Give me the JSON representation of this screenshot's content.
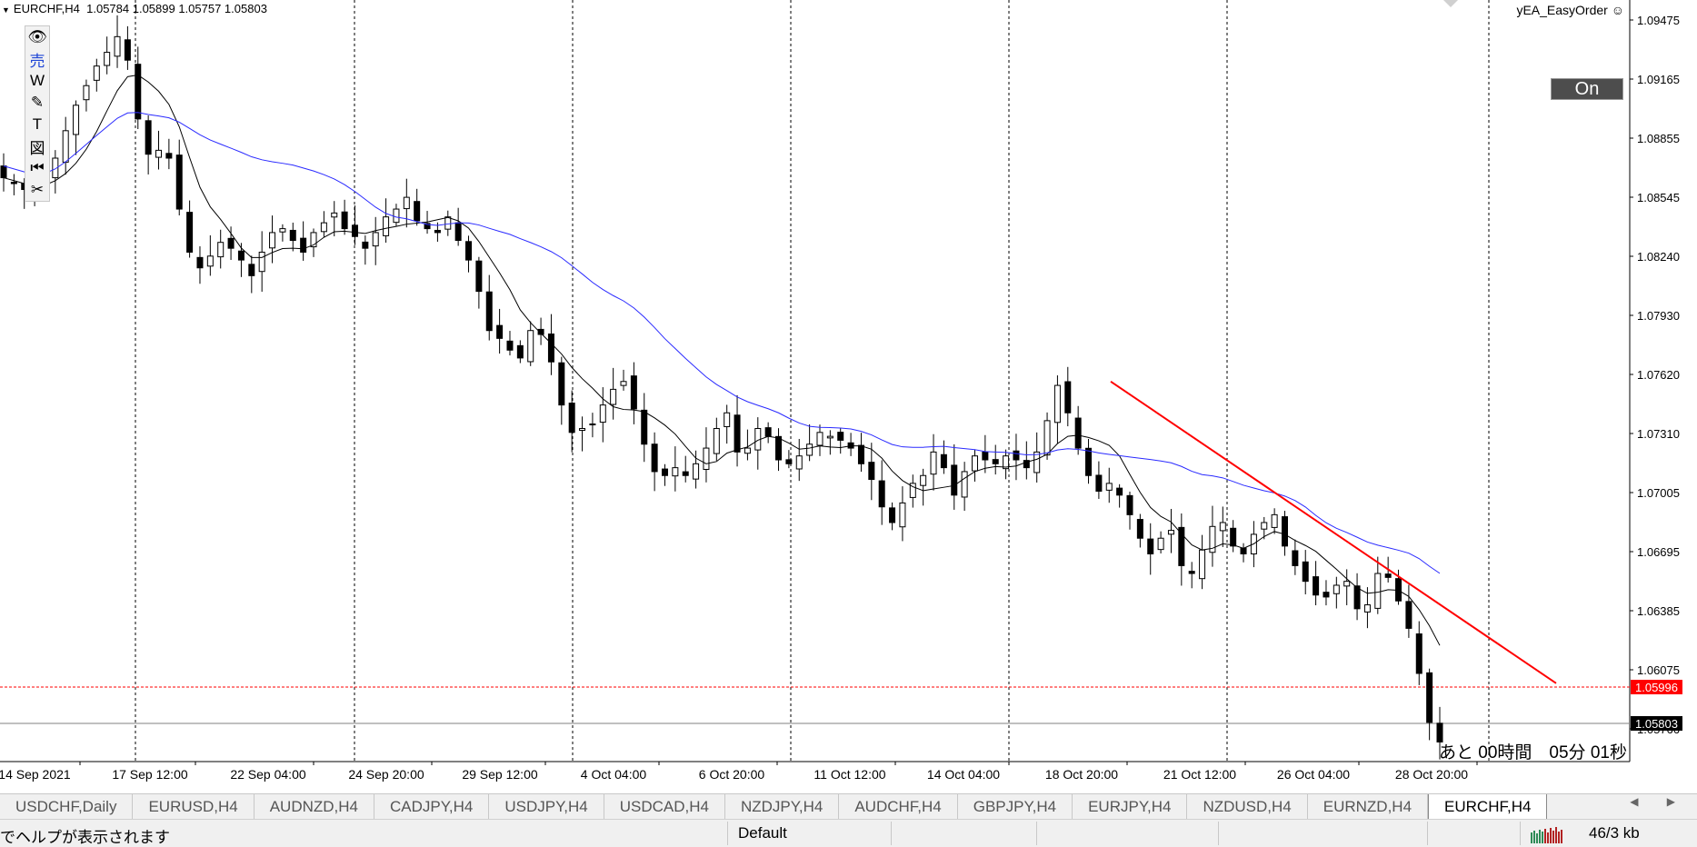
{
  "header": {
    "symbol": "EURCHF,H4",
    "ohlc": "1.05784 1.05899 1.05757 1.05803"
  },
  "toolbar": {
    "tools": [
      {
        "name": "eye-icon",
        "glyph": "👁"
      },
      {
        "name": "sell-icon",
        "glyph": "売"
      },
      {
        "name": "w-icon",
        "glyph": "W"
      },
      {
        "name": "pencil-icon",
        "glyph": "✎"
      },
      {
        "name": "text-icon",
        "glyph": "T"
      },
      {
        "name": "figure-icon",
        "glyph": "図"
      },
      {
        "name": "rewind-icon",
        "glyph": "⏮"
      },
      {
        "name": "scissors-icon",
        "glyph": "✂"
      }
    ]
  },
  "ea": {
    "label": "yEA_EasyOrder ☺",
    "button": "On"
  },
  "countdown": "あと 00時間　05分 01秒",
  "colors": {
    "ma_fast": "#000000",
    "ma_slow": "#2a2aff",
    "trendline": "#ff0000",
    "bid_line": "#808080",
    "ask_line": "#ff0000",
    "ask_tag": "#ff0000"
  },
  "chart_data": {
    "type": "candlestick",
    "symbol": "EURCHF",
    "timeframe": "H4",
    "ylim": [
      1.057,
      1.0955
    ],
    "price_labels": [
      "1.09475",
      "1.09165",
      "1.08855",
      "1.08545",
      "1.08240",
      "1.07930",
      "1.07620",
      "1.07310",
      "1.07005",
      "1.06695",
      "1.06385",
      "1.06075",
      "1.05766"
    ],
    "date_labels": [
      "14 Sep 2021",
      "17 Sep 12:00",
      "22 Sep 04:00",
      "24 Sep 20:00",
      "29 Sep 12:00",
      "4 Oct 04:00",
      "6 Oct 20:00",
      "11 Oct 12:00",
      "14 Oct 04:00",
      "18 Oct 20:00",
      "21 Oct 12:00",
      "26 Oct 04:00",
      "28 Oct 20:00"
    ],
    "ask_price": "1.05996",
    "bid_price": "1.05803",
    "session_separators": [
      "15 Sep",
      "17 Sep",
      "24 Sep",
      "29 Sep",
      "4 Oct",
      "11 Oct",
      "14 Oct",
      "21 Oct",
      "28 Oct",
      "29 Oct"
    ],
    "trendline": {
      "from_price": 1.0764,
      "to_price": 1.061
    },
    "candles_close": [
      1.0868,
      1.0865,
      1.0862,
      1.0858,
      1.0868,
      1.0878,
      1.0892,
      1.0905,
      1.0915,
      1.0925,
      1.0932,
      1.094,
      1.0928,
      1.0898,
      1.088,
      1.0882,
      1.0878,
      1.0852,
      1.083,
      1.0822,
      1.0828,
      1.0835,
      1.0832,
      1.0826,
      1.0818,
      1.083,
      1.084,
      1.0842,
      1.0836,
      1.083,
      1.084,
      1.0845,
      1.085,
      1.0842,
      1.0838,
      1.0832,
      1.084,
      1.0848,
      1.0852,
      1.0858,
      1.0846,
      1.0842,
      1.084,
      1.0848,
      1.0836,
      1.0826,
      1.081,
      1.079,
      1.0786,
      1.078,
      1.0776,
      1.079,
      1.0788,
      1.0774,
      1.0752,
      1.0738,
      1.074,
      1.0742,
      1.0752,
      1.076,
      1.0764,
      1.075,
      1.0732,
      1.0718,
      1.0716,
      1.072,
      1.0716,
      1.0722,
      1.073,
      1.074,
      1.0748,
      1.0728,
      1.073,
      1.074,
      1.0736,
      1.0724,
      1.0722,
      1.0726,
      1.0732,
      1.0738,
      1.0736,
      1.0734,
      1.073,
      1.0722,
      1.0714,
      1.07,
      1.0692,
      1.0702,
      1.0712,
      1.0716,
      1.0728,
      1.072,
      1.0706,
      1.0718,
      1.0726,
      1.0724,
      1.0722,
      1.0726,
      1.0724,
      1.072,
      1.0728,
      1.0744,
      1.0762,
      1.0748,
      1.073,
      1.0716,
      1.0708,
      1.0712,
      1.0706,
      1.0696,
      1.0684,
      1.0676,
      1.0684,
      1.0688,
      1.067,
      1.0666,
      1.0678,
      1.069,
      1.0692,
      1.068,
      1.0676,
      1.0686,
      1.0692,
      1.0696,
      1.068,
      1.067,
      1.0662,
      1.0655,
      1.0654,
      1.066,
      1.0662,
      1.0648,
      1.065,
      1.0666,
      1.0664,
      1.0652,
      1.0638,
      1.0615,
      1.059,
      1.058
    ],
    "ma_fast_period_note": "",
    "ma_slow_period_note": ""
  },
  "tabs": [
    "USDCHF,Daily",
    "EURUSD,H4",
    "AUDNZD,H4",
    "CADJPY,H4",
    "USDJPY,H4",
    "USDCAD,H4",
    "NZDJPY,H4",
    "AUDCHF,H4",
    "GBPJPY,H4",
    "EURJPY,H4",
    "NZDUSD,H4",
    "EURNZD,H4",
    "EURCHF,H4"
  ],
  "active_tab": 12,
  "tab_arrows": "◀ ▶",
  "status": {
    "help": "でヘルプが表示されます",
    "profile": "Default",
    "traffic": "46/3 kb"
  }
}
